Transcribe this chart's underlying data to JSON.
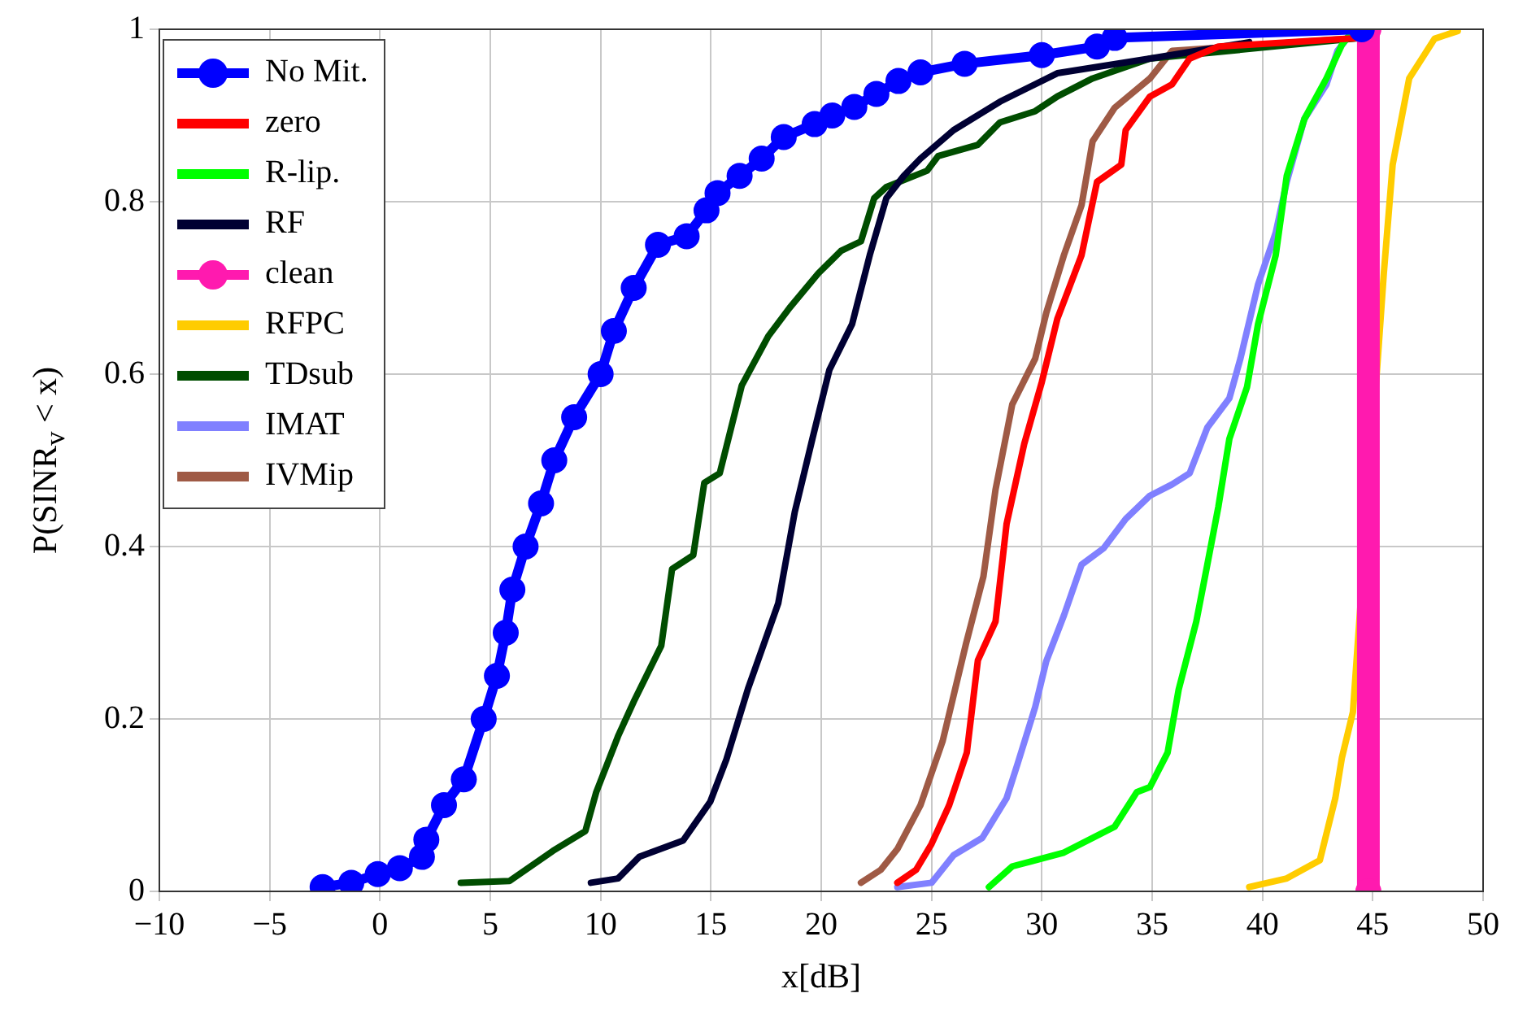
{
  "chart_data": {
    "type": "line",
    "xlabel": "x[dB]",
    "ylabel": "P(SINR$_{v}$ < x)",
    "xlim": [
      -10,
      50
    ],
    "xticks": [
      -10,
      -5,
      0,
      5,
      10,
      15,
      20,
      25,
      30,
      35,
      40,
      45,
      50
    ],
    "ylim": [
      0,
      1
    ],
    "yticks": [
      0,
      0.2,
      0.4,
      0.6,
      0.8,
      1
    ],
    "grid": true,
    "legend": "top left",
    "marker": "none",
    "line_style": "solid",
    "series": [
      {
        "name": "No Mit.",
        "color": "#0000ff",
        "marker": "circle",
        "x": [
          -2.6,
          -1.3,
          -0.1,
          0.9,
          1.9,
          2.1,
          2.9,
          3.8,
          4.7,
          5.3,
          5.7,
          6,
          6.6,
          7.3,
          7.9,
          8.8,
          10,
          10.6,
          11.5,
          12.6,
          13.9,
          14.8,
          15.3,
          16.3,
          17.3,
          18.3,
          19.7,
          20.5,
          21.5,
          22.5,
          23.5,
          24.5,
          26.5,
          30,
          32.5,
          33.3,
          44.5
        ],
        "values": [
          0.005,
          0.01,
          0.02,
          0.027,
          0.04,
          0.06,
          0.1,
          0.13,
          0.2,
          0.25,
          0.3,
          0.35,
          0.4,
          0.45,
          0.5,
          0.55,
          0.6,
          0.65,
          0.7,
          0.75,
          0.76,
          0.79,
          0.81,
          0.83,
          0.85,
          0.875,
          0.89,
          0.9,
          0.91,
          0.925,
          0.94,
          0.95,
          0.96,
          0.97,
          0.98,
          0.99,
          1
        ]
      },
      {
        "name": "zero",
        "color": "#ff0000",
        "x": [
          23.45,
          24.3,
          25,
          25.8,
          26.6,
          27.1,
          27.9,
          28.4,
          29.2,
          30,
          30.7,
          31.8,
          32.5,
          33.6,
          33.8,
          34.9,
          35.9,
          36.7,
          38,
          44.5
        ],
        "values": [
          0.01,
          0.025,
          0.055,
          0.1,
          0.161,
          0.268,
          0.313,
          0.426,
          0.519,
          0.591,
          0.664,
          0.738,
          0.823,
          0.843,
          0.883,
          0.922,
          0.936,
          0.966,
          0.98,
          0.99
        ]
      },
      {
        "name": "R-lip.",
        "color": "#00ff00",
        "x": [
          27.6,
          28.66,
          31,
          33.3,
          34.3,
          34.9,
          35.7,
          36.2,
          37,
          37.5,
          38,
          38.5,
          39.3,
          39.8,
          40.6,
          41.1,
          41.9,
          42.9,
          43.6,
          44
        ],
        "values": [
          0.005,
          0.029,
          0.045,
          0.075,
          0.115,
          0.121,
          0.161,
          0.234,
          0.313,
          0.379,
          0.446,
          0.525,
          0.585,
          0.658,
          0.738,
          0.83,
          0.896,
          0.943,
          0.982,
          0.995
        ]
      },
      {
        "name": "RF",
        "color": "#000033",
        "x": [
          9.56,
          10.79,
          11.75,
          13.74,
          14.97,
          15.7,
          16.68,
          18.05,
          18.8,
          19.6,
          20.37,
          21.4,
          22.2,
          22.95,
          23.74,
          24.5,
          26,
          28.1,
          30.7,
          34.9,
          39.4
        ],
        "values": [
          0.01,
          0.015,
          0.04,
          0.059,
          0.104,
          0.153,
          0.235,
          0.334,
          0.44,
          0.525,
          0.605,
          0.658,
          0.738,
          0.804,
          0.83,
          0.85,
          0.883,
          0.916,
          0.949,
          0.966,
          0.985
        ]
      },
      {
        "name": "clean",
        "color": "#ff1aaf",
        "marker": "circle",
        "x": [
          44.8,
          44.8
        ],
        "values": [
          0,
          1
        ]
      },
      {
        "name": "RFPC",
        "color": "#ffcc00",
        "x": [
          39.4,
          41.1,
          42.6,
          43.3,
          43.6,
          44.1,
          44.46,
          45.5,
          45.9,
          46.2,
          46.65,
          47.3,
          47.8,
          48.85
        ],
        "values": [
          0.005,
          0.015,
          0.036,
          0.108,
          0.155,
          0.208,
          null,
          0.717,
          0.843,
          0.883,
          0.943,
          0.969,
          0.989,
          0.998
        ]
      },
      {
        "name": "TDsub",
        "color": "#004d00",
        "x": [
          3.66,
          5.87,
          7.84,
          9.31,
          9.8,
          10.79,
          11.5,
          12.75,
          13.24,
          14.2,
          14.7,
          15.4,
          16.4,
          17.6,
          18.57,
          19.87,
          20.9,
          21.8,
          22.4,
          22.95,
          24.8,
          25.3,
          27.1,
          28.1,
          29.7,
          30.7,
          32.3,
          34.9,
          44.5
        ],
        "values": [
          0.01,
          0.012,
          0.047,
          0.07,
          0.115,
          0.18,
          0.22,
          0.285,
          0.374,
          0.39,
          0.474,
          0.485,
          0.587,
          0.644,
          0.677,
          0.717,
          0.743,
          0.754,
          0.804,
          0.817,
          0.836,
          0.853,
          0.866,
          0.892,
          0.905,
          0.922,
          0.943,
          0.966,
          0.99
        ]
      },
      {
        "name": "IMAT",
        "color": "#8080ff",
        "x": [
          23.45,
          25,
          26,
          27.3,
          28.4,
          28.9,
          29.7,
          30.2,
          31,
          31.8,
          32.8,
          33.8,
          34.9,
          35.9,
          36.7,
          37.5,
          38.5,
          39,
          39.8,
          40.6,
          41.1,
          41.9,
          42.9,
          43.4,
          44
        ],
        "values": [
          0.005,
          0.01,
          0.042,
          0.062,
          0.108,
          0.148,
          0.214,
          0.267,
          0.32,
          0.379,
          0.398,
          0.432,
          0.459,
          0.472,
          0.485,
          0.538,
          0.572,
          0.618,
          0.704,
          0.764,
          0.823,
          0.896,
          0.936,
          0.975,
          0.995
        ]
      },
      {
        "name": "IVMip",
        "color": "#9f5a45",
        "x": [
          21.8,
          22.7,
          23.45,
          24.5,
          25.5,
          26.56,
          27.35,
          27.9,
          28.66,
          29.7,
          30.2,
          31,
          31.8,
          32.3,
          33.3,
          34.9,
          35.9,
          44.5
        ],
        "values": [
          0.01,
          0.025,
          0.049,
          0.1,
          0.174,
          0.287,
          0.365,
          0.466,
          0.565,
          0.618,
          0.671,
          0.738,
          0.796,
          0.87,
          0.909,
          0.943,
          0.975,
          0.99
        ]
      }
    ]
  }
}
